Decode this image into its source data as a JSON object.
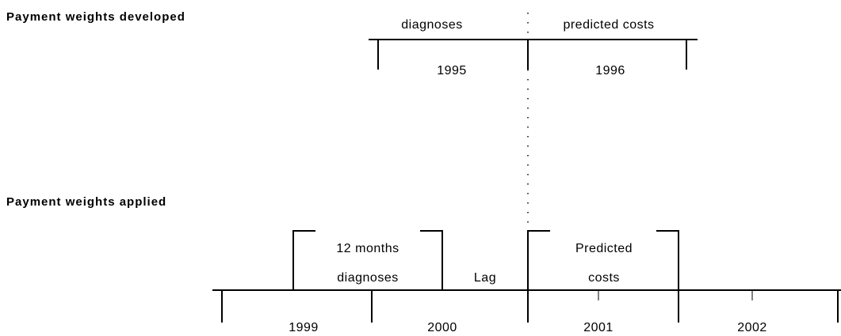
{
  "developed": {
    "title": "Payment weights developed",
    "periods": [
      "diagnoses",
      "predicted costs"
    ],
    "years": [
      "1995",
      "1996"
    ]
  },
  "applied": {
    "title": "Payment weights applied",
    "labels": [
      "12 months",
      "diagnoses",
      "Lag",
      "Predicted",
      "costs"
    ],
    "years": [
      "1999",
      "2000",
      "2001",
      "2002"
    ]
  }
}
